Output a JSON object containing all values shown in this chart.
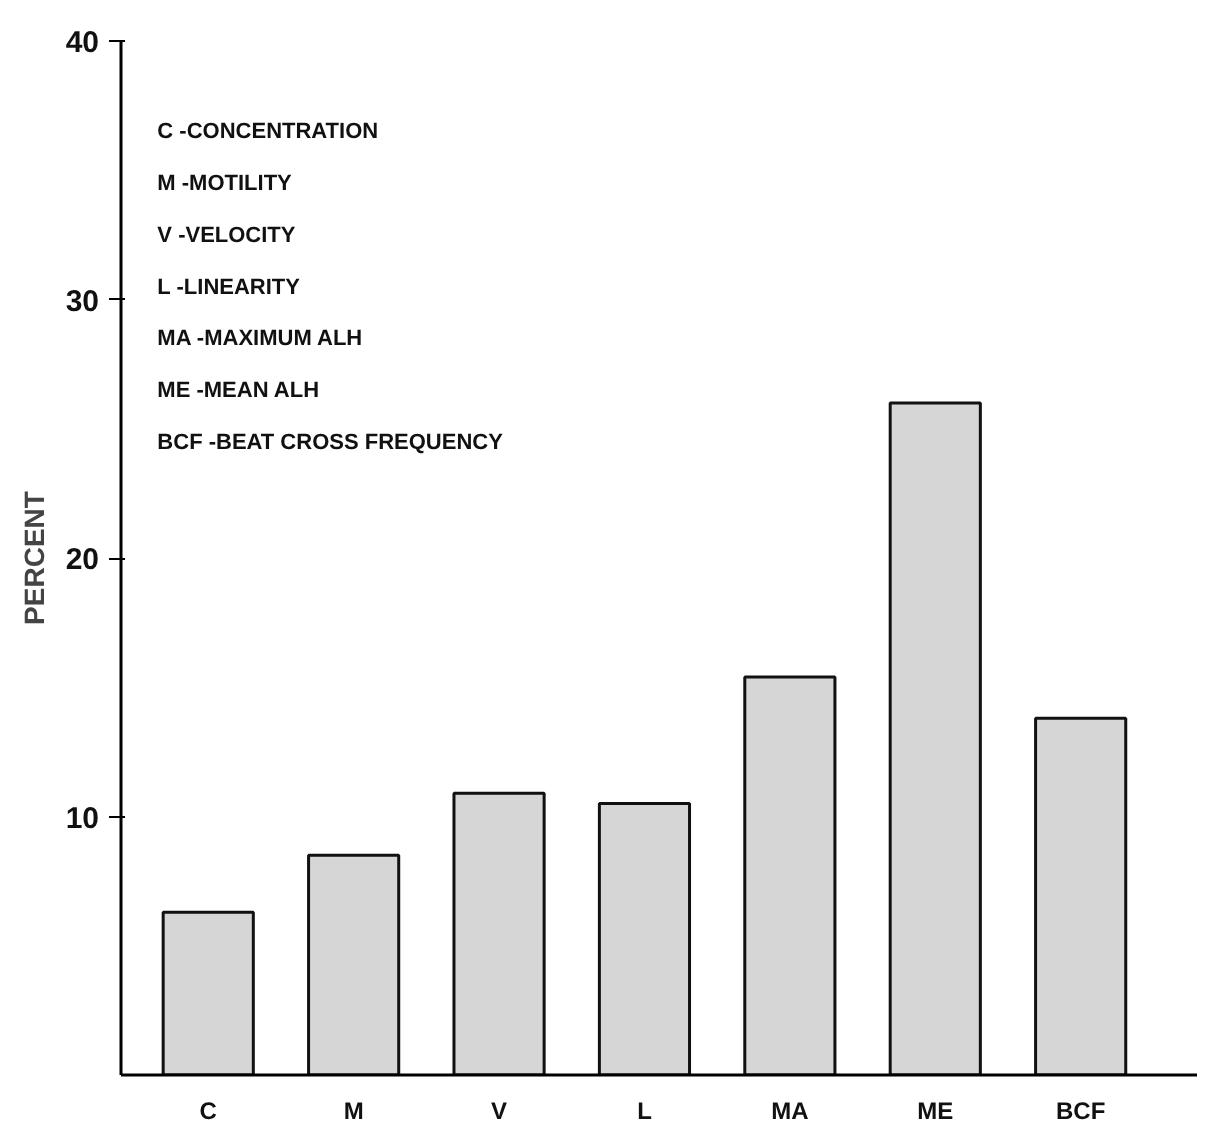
{
  "chart_data": {
    "type": "bar",
    "ylabel": "PERCENT",
    "categories": [
      "C",
      "M",
      "V",
      "L",
      "MA",
      "ME",
      "BCF"
    ],
    "values": [
      6.3,
      8.5,
      10.9,
      10.5,
      15.4,
      26.0,
      13.8
    ],
    "color": "#d6d6d6",
    "ylim": [
      0,
      40
    ],
    "yticks": [
      10,
      20,
      30,
      40
    ],
    "grid": false,
    "annotations": [
      "C    -CONCENTRATION",
      "M    -MOTILITY",
      "V    -VELOCITY",
      "L    -LINEARITY",
      "MA  -MAXIMUM ALH",
      "ME  -MEAN ALH",
      "BCF -BEAT CROSS FREQUENCY"
    ]
  }
}
